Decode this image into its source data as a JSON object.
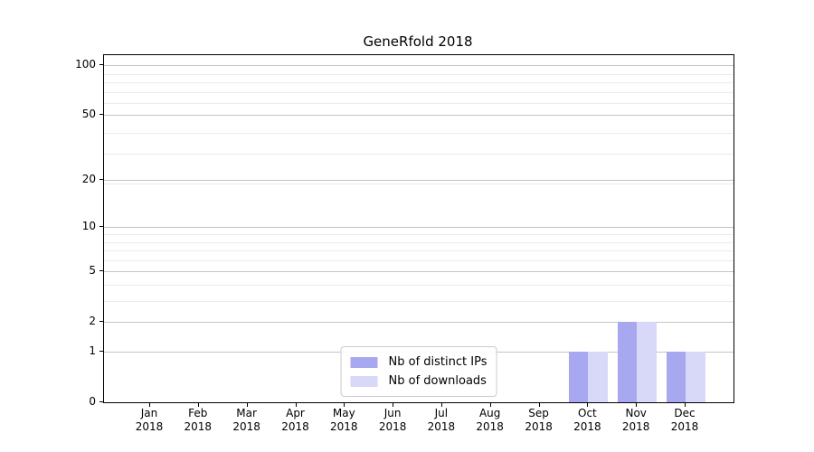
{
  "chart_data": {
    "type": "bar",
    "title": "GeneRfold 2018",
    "categories": [
      "Jan",
      "Feb",
      "Mar",
      "Apr",
      "May",
      "Jun",
      "Jul",
      "Aug",
      "Sep",
      "Oct",
      "Nov",
      "Dec"
    ],
    "x_year": "2018",
    "series": [
      {
        "name": "Nb of distinct IPs",
        "color": "#a8a8f0",
        "values": [
          0,
          0,
          0,
          0,
          0,
          0,
          0,
          0,
          0,
          1,
          2,
          1
        ]
      },
      {
        "name": "Nb of downloads",
        "color": "#d8d8f8",
        "values": [
          0,
          0,
          0,
          0,
          0,
          0,
          0,
          0,
          0,
          1,
          2,
          1
        ]
      }
    ],
    "y_ticks": [
      0,
      1,
      2,
      5,
      10,
      20,
      50,
      100
    ],
    "y_minor_ticks": [
      3,
      4,
      6,
      7,
      8,
      9,
      19,
      29,
      39,
      59,
      69,
      79,
      89
    ],
    "y_scale": "log1p",
    "ylim": [
      0,
      117
    ],
    "xlabel": "",
    "ylabel": "",
    "grid": true,
    "legend_position": "lower center",
    "colors": {
      "major_grid": "#c4c4c4",
      "minor_grid": "#ebebeb",
      "axis": "#000000",
      "background": "#ffffff",
      "text": "#000000"
    }
  }
}
